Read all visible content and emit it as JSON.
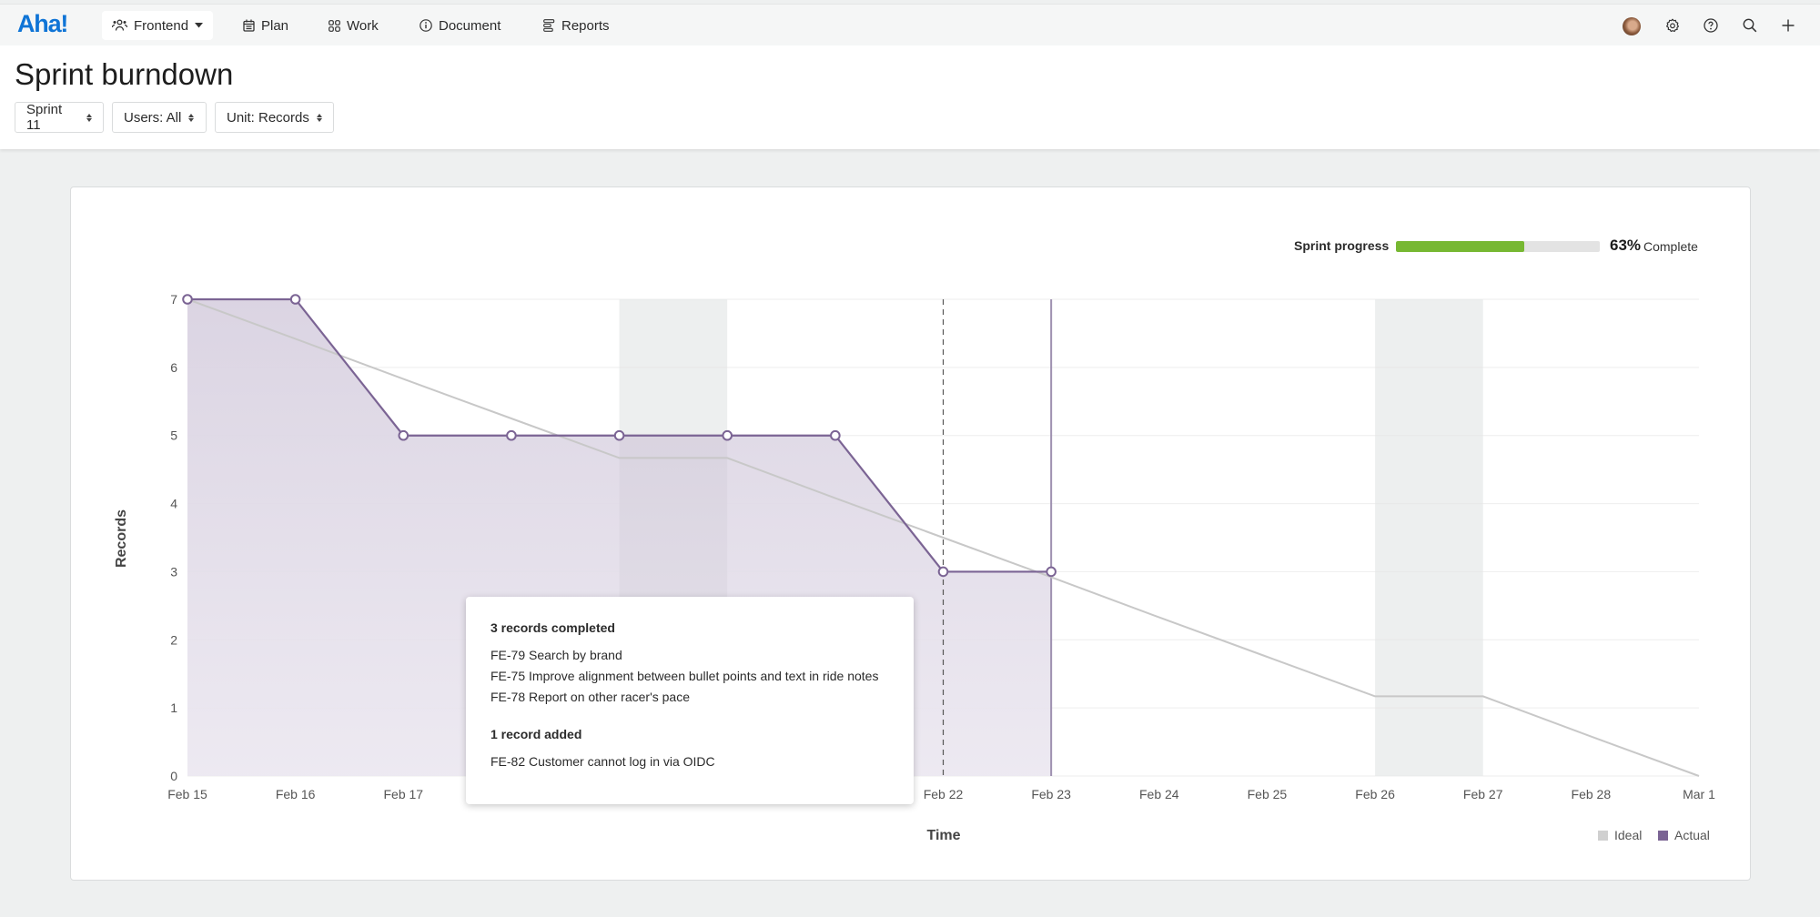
{
  "topbar": {
    "logo": "Aha!",
    "workspace": {
      "label": "Frontend",
      "icon": "team-icon"
    },
    "nav": [
      {
        "label": "Plan",
        "icon": "calendar-icon"
      },
      {
        "label": "Work",
        "icon": "grid-icon"
      },
      {
        "label": "Document",
        "icon": "info-icon"
      },
      {
        "label": "Reports",
        "icon": "reports-icon"
      }
    ],
    "right_icons": [
      "avatar",
      "gear-icon",
      "help-icon",
      "search-icon",
      "plus-icon"
    ]
  },
  "header": {
    "title": "Sprint burndown",
    "filters": [
      {
        "label": "Sprint 11"
      },
      {
        "label": "Users: All"
      },
      {
        "label": "Unit: Records"
      }
    ]
  },
  "progress": {
    "label": "Sprint progress",
    "percent": 63,
    "percent_text": "63%",
    "complete_text": "Complete",
    "fill_color": "#77b832",
    "track_color": "#e3e3e3"
  },
  "legend": {
    "ideal": {
      "label": "Ideal",
      "color": "#d0d0d0"
    },
    "actual": {
      "label": "Actual",
      "color": "#7b6494"
    }
  },
  "tooltip": {
    "completed_heading": "3 records completed",
    "completed_items": [
      "FE-79 Search by brand",
      "FE-75 Improve alignment between bullet points and text in ride notes",
      "FE-78 Report on other racer's pace"
    ],
    "added_heading": "1 record added",
    "added_items": [
      "FE-82 Customer cannot log in via OIDC"
    ]
  },
  "chart_data": {
    "type": "line",
    "title": "Sprint burndown",
    "xlabel": "Time",
    "ylabel": "Records",
    "ylim": [
      0,
      7
    ],
    "yticks": [
      0,
      1,
      2,
      3,
      4,
      5,
      6,
      7
    ],
    "x": [
      "Feb 15",
      "Feb 16",
      "Feb 17",
      "Feb 18",
      "Feb 19",
      "Feb 20",
      "Feb 21",
      "Feb 22",
      "Feb 23",
      "Feb 24",
      "Feb 25",
      "Feb 26",
      "Feb 27",
      "Feb 28",
      "Mar 1"
    ],
    "visible_xtick_labels": [
      "Feb 15",
      "Feb 16",
      "Feb 17",
      "Feb 22",
      "Feb 23",
      "Feb 24",
      "Feb 25",
      "Feb 26",
      "Feb 27",
      "Feb 28",
      "Mar 1"
    ],
    "non_working_bands": [
      [
        "Feb 19",
        "Feb 20"
      ],
      [
        "Feb 26",
        "Feb 27"
      ]
    ],
    "today_marker": "Feb 22",
    "current_marker": "Feb 23",
    "grid": true,
    "legend_position": "bottom-right",
    "series": [
      {
        "name": "Ideal",
        "color": "#c8c8c8",
        "values": [
          7,
          6.42,
          5.83,
          5.25,
          4.67,
          4.67,
          4.08,
          3.5,
          2.92,
          2.33,
          1.75,
          1.17,
          1.17,
          0.58,
          0
        ]
      },
      {
        "name": "Actual",
        "color": "#7b6494",
        "values": [
          7,
          7,
          5,
          5,
          5,
          5,
          5,
          3,
          3,
          null,
          null,
          null,
          null,
          null,
          null
        ]
      }
    ]
  }
}
